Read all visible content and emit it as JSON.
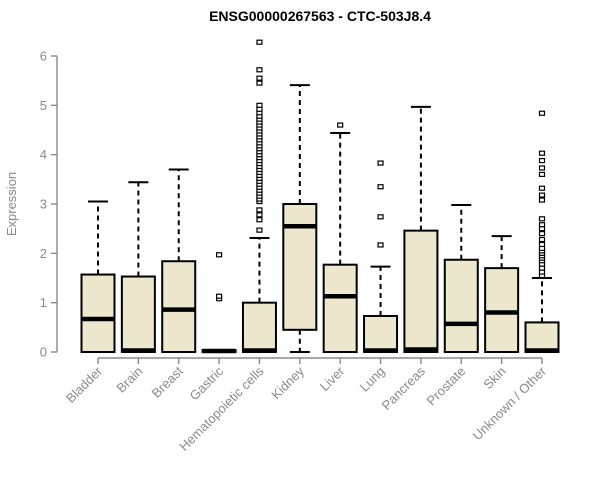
{
  "page": {
    "background": "#ffffff"
  },
  "colors": {
    "box_fill": "#ede7cd",
    "box_stroke": "#000000",
    "median_color": "#000000",
    "whisker_color": "#000000",
    "outlier_stroke": "#000000",
    "outlier_fill": "#ffffff",
    "axis_color": "#8a8a8a",
    "title_color": "#000000"
  },
  "chart_data": {
    "type": "boxplot",
    "title": "ENSG00000267563 - CTC-503J8.4",
    "xlabel": "",
    "ylabel": "Expression",
    "ylim": [
      0,
      6
    ],
    "yticks": [
      0,
      1,
      2,
      3,
      4,
      5,
      6
    ],
    "grid": false,
    "legend": "none",
    "x_label_rotation_deg": 45,
    "categories": [
      "Bladder",
      "Brain",
      "Breast",
      "Gastric",
      "Hematopoietic cells",
      "Kidney",
      "Liver",
      "Lung",
      "Pancreas",
      "Prostate",
      "Skin",
      "Unknown / Other"
    ],
    "series": [
      {
        "name": "Bladder",
        "whisker_low": 0,
        "q1": 0,
        "median": 0.67,
        "q3": 1.57,
        "whisker_high": 3.05,
        "outliers": []
      },
      {
        "name": "Brain",
        "whisker_low": 0,
        "q1": 0,
        "median": 0.03,
        "q3": 1.53,
        "whisker_high": 3.44,
        "outliers": []
      },
      {
        "name": "Breast",
        "whisker_low": 0,
        "q1": 0,
        "median": 0.86,
        "q3": 1.84,
        "whisker_high": 3.7,
        "outliers": []
      },
      {
        "name": "Gastric",
        "whisker_low": 0,
        "q1": 0,
        "median": 0.02,
        "q3": 0.04,
        "whisker_high": 0.04,
        "outliers": [
          1.08,
          1.13,
          1.97
        ]
      },
      {
        "name": "Hematopoietic cells",
        "whisker_low": 0,
        "q1": 0,
        "median": 0.03,
        "q3": 1.0,
        "whisker_high": 2.31,
        "outliers": [
          2.47,
          2.68,
          2.78,
          2.88,
          3.05,
          3.1,
          3.16,
          3.22,
          3.28,
          3.34,
          3.4,
          3.46,
          3.52,
          3.58,
          3.64,
          3.7,
          3.76,
          3.82,
          3.88,
          3.94,
          4.0,
          4.06,
          4.12,
          4.18,
          4.24,
          4.3,
          4.36,
          4.42,
          4.48,
          4.54,
          4.6,
          4.66,
          4.72,
          4.78,
          4.85,
          4.92,
          5.0,
          5.45,
          5.55,
          5.72,
          6.28
        ]
      },
      {
        "name": "Kidney",
        "whisker_low": 0,
        "q1": 0.45,
        "median": 2.55,
        "q3": 3.0,
        "whisker_high": 5.41,
        "outliers": []
      },
      {
        "name": "Liver",
        "whisker_low": 0,
        "q1": 0,
        "median": 1.13,
        "q3": 1.77,
        "whisker_high": 4.44,
        "outliers": [
          4.6
        ]
      },
      {
        "name": "Lung",
        "whisker_low": 0,
        "q1": 0,
        "median": 0.03,
        "q3": 0.73,
        "whisker_high": 1.73,
        "outliers": [
          2.17,
          2.74,
          3.35,
          3.83
        ]
      },
      {
        "name": "Pancreas",
        "whisker_low": 0,
        "q1": 0,
        "median": 0.05,
        "q3": 2.46,
        "whisker_high": 4.97,
        "outliers": []
      },
      {
        "name": "Prostate",
        "whisker_low": 0,
        "q1": 0,
        "median": 0.57,
        "q3": 1.87,
        "whisker_high": 2.98,
        "outliers": []
      },
      {
        "name": "Skin",
        "whisker_low": 0,
        "q1": 0,
        "median": 0.8,
        "q3": 1.7,
        "whisker_high": 2.35,
        "outliers": []
      },
      {
        "name": "Unknown / Other",
        "whisker_low": 0,
        "q1": 0,
        "median": 0.03,
        "q3": 0.6,
        "whisker_high": 1.5,
        "outliers": [
          1.55,
          1.62,
          1.7,
          1.78,
          1.85,
          1.9,
          1.95,
          2.0,
          2.05,
          2.1,
          2.18,
          2.28,
          2.4,
          2.5,
          2.58,
          2.7,
          3.08,
          3.18,
          3.32,
          3.6,
          3.73,
          3.88,
          4.03,
          4.84
        ]
      }
    ]
  }
}
